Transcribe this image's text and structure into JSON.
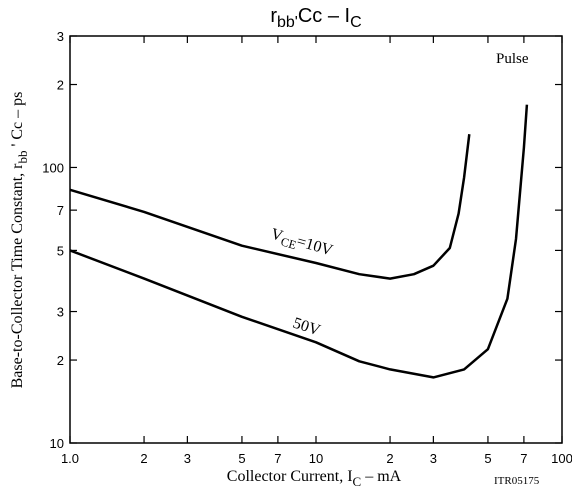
{
  "chart_data": {
    "type": "line",
    "title": [
      "r",
      "bb'",
      "Cc  –  I",
      "C"
    ],
    "xlabel": [
      "Collector Current, I",
      "C",
      "  –  mA"
    ],
    "ylabel": [
      "Base-to-Collector Time Constant, r",
      "bb",
      " ' Cc  –  ps"
    ],
    "log_x": true,
    "log_y": true,
    "grid": false,
    "xlim": [
      1,
      100
    ],
    "ylim": [
      10,
      300
    ],
    "xticks": [
      {
        "value": 1,
        "label": "1.0"
      },
      2,
      3,
      5,
      7,
      10,
      {
        "value": 20,
        "label": "2"
      },
      {
        "value": 30,
        "label": "3"
      },
      {
        "value": 50,
        "label": "5"
      },
      {
        "value": 70,
        "label": "7"
      },
      100
    ],
    "yticks": [
      10,
      {
        "value": 20,
        "label": "2"
      },
      {
        "value": 30,
        "label": "3"
      },
      {
        "value": 50,
        "label": "5"
      },
      {
        "value": 70,
        "label": "7"
      },
      100,
      {
        "value": 200,
        "label": "2"
      },
      {
        "value": 300,
        "label": "3"
      }
    ],
    "series": [
      {
        "color": "#000000",
        "x": [
          1,
          2,
          5,
          10,
          15,
          20,
          25,
          30,
          35,
          38,
          40,
          42
        ],
        "values": [
          83,
          69,
          52,
          45,
          41,
          39.5,
          41,
          44,
          51,
          68,
          92,
          132
        ]
      },
      {
        "color": "#000000",
        "x": [
          1,
          2,
          5,
          10,
          15,
          20,
          30,
          40,
          50,
          60,
          65,
          70,
          72
        ],
        "values": [
          50,
          39.5,
          28.7,
          23.2,
          19.8,
          18.5,
          17.3,
          18.5,
          21.9,
          33.4,
          55,
          118,
          169
        ]
      }
    ],
    "annotations": [
      [
        "V",
        "CE",
        "=10V"
      ],
      "50V",
      "Pulse",
      "ITR05175"
    ]
  }
}
